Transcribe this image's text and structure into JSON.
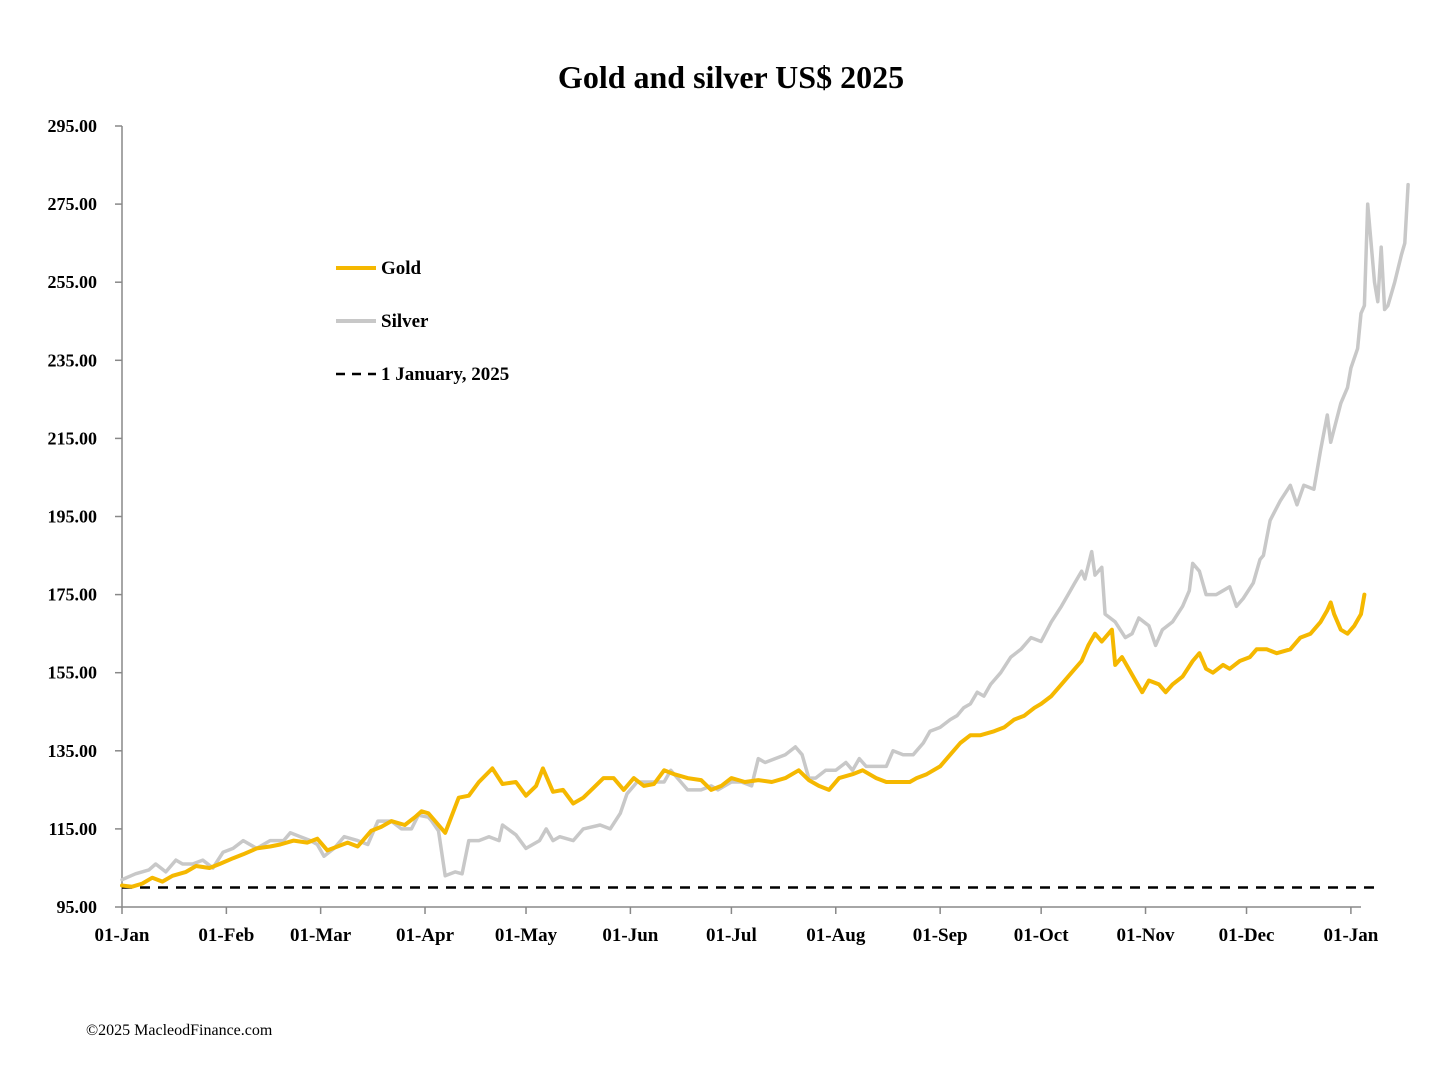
{
  "chart_data": {
    "type": "line",
    "title": "Gold and silver  US$ 2025",
    "xlabel": "",
    "ylabel": "",
    "ylim": [
      95,
      295
    ],
    "y_ticks": [
      "95.00",
      "115.00",
      "135.00",
      "155.00",
      "175.00",
      "195.00",
      "215.00",
      "235.00",
      "255.00",
      "275.00",
      "295.00"
    ],
    "x_ticks": [
      "01-Jan",
      "01-Feb",
      "01-Mar",
      "01-Apr",
      "01-May",
      "01-Jun",
      "01-Jul",
      "01-Aug",
      "01-Sep",
      "01-Oct",
      "01-Nov",
      "01-Dec",
      "01-Jan"
    ],
    "x_tick_days": [
      0,
      31,
      59,
      90,
      120,
      151,
      181,
      212,
      243,
      273,
      304,
      334,
      365
    ],
    "xlim_days": [
      0,
      368
    ],
    "legend_position": "upper-left",
    "grid": false,
    "series": [
      {
        "name": "Gold",
        "color": "#F5B800",
        "style": "solid",
        "points": [
          [
            0,
            100.5
          ],
          [
            3,
            100.2
          ],
          [
            6,
            101
          ],
          [
            9,
            102.5
          ],
          [
            12,
            101.5
          ],
          [
            15,
            103
          ],
          [
            19,
            104
          ],
          [
            22,
            105.5
          ],
          [
            26,
            105
          ],
          [
            29,
            106
          ],
          [
            33,
            107.5
          ],
          [
            36,
            108.5
          ],
          [
            40,
            110
          ],
          [
            44,
            110.5
          ],
          [
            47,
            111
          ],
          [
            51,
            112
          ],
          [
            55,
            111.5
          ],
          [
            58,
            112.5
          ],
          [
            61,
            109.5
          ],
          [
            64,
            110.5
          ],
          [
            67,
            111.5
          ],
          [
            70,
            110.5
          ],
          [
            74,
            114.5
          ],
          [
            77,
            115.5
          ],
          [
            80,
            117
          ],
          [
            84,
            116
          ],
          [
            87,
            118
          ],
          [
            89,
            119.5
          ],
          [
            91,
            119
          ],
          [
            94,
            116
          ],
          [
            96,
            114
          ],
          [
            100,
            123
          ],
          [
            103,
            123.5
          ],
          [
            106,
            127
          ],
          [
            110,
            130.5
          ],
          [
            113,
            126.5
          ],
          [
            117,
            127
          ],
          [
            120,
            123.5
          ],
          [
            123,
            126
          ],
          [
            125,
            130.5
          ],
          [
            128,
            124.5
          ],
          [
            131,
            125
          ],
          [
            134,
            121.5
          ],
          [
            137,
            123
          ],
          [
            140,
            125.5
          ],
          [
            143,
            128
          ],
          [
            146,
            128
          ],
          [
            149,
            125
          ],
          [
            152,
            128
          ],
          [
            155,
            126
          ],
          [
            158,
            126.5
          ],
          [
            161,
            130
          ],
          [
            164,
            129
          ],
          [
            168,
            128
          ],
          [
            172,
            127.5
          ],
          [
            175,
            125
          ],
          [
            178,
            126
          ],
          [
            181,
            128
          ],
          [
            185,
            127
          ],
          [
            189,
            127.5
          ],
          [
            193,
            127
          ],
          [
            197,
            128
          ],
          [
            201,
            130
          ],
          [
            204,
            127.5
          ],
          [
            207,
            126
          ],
          [
            210,
            125
          ],
          [
            213,
            128
          ],
          [
            217,
            129
          ],
          [
            220,
            130
          ],
          [
            224,
            128
          ],
          [
            227,
            127
          ],
          [
            231,
            127
          ],
          [
            234,
            127
          ],
          [
            236,
            128
          ],
          [
            239,
            129
          ],
          [
            243,
            131
          ],
          [
            246,
            134
          ],
          [
            249,
            137
          ],
          [
            252,
            139
          ],
          [
            255,
            139
          ],
          [
            259,
            140
          ],
          [
            262,
            141
          ],
          [
            265,
            143
          ],
          [
            268,
            144
          ],
          [
            271,
            146
          ],
          [
            273,
            147
          ],
          [
            276,
            149
          ],
          [
            279,
            152
          ],
          [
            282,
            155
          ],
          [
            285,
            158
          ],
          [
            287,
            162
          ],
          [
            289,
            165
          ],
          [
            291,
            163
          ],
          [
            294,
            166
          ],
          [
            295,
            157
          ],
          [
            297,
            159
          ],
          [
            299,
            156
          ],
          [
            301,
            153
          ],
          [
            303,
            150
          ],
          [
            305,
            153
          ],
          [
            308,
            152
          ],
          [
            310,
            150
          ],
          [
            312,
            152
          ],
          [
            315,
            154
          ],
          [
            318,
            158
          ],
          [
            320,
            160
          ],
          [
            322,
            156
          ],
          [
            324,
            155
          ],
          [
            327,
            157
          ],
          [
            329,
            156
          ],
          [
            332,
            158
          ],
          [
            335,
            159
          ],
          [
            337,
            161
          ],
          [
            340,
            161
          ],
          [
            343,
            160
          ],
          [
            347,
            161
          ],
          [
            350,
            164
          ],
          [
            353,
            165
          ],
          [
            356,
            168
          ],
          [
            358,
            171
          ],
          [
            359,
            173
          ],
          [
            360,
            170
          ],
          [
            362,
            166
          ],
          [
            364,
            165
          ],
          [
            366,
            167
          ],
          [
            368,
            170
          ],
          [
            369,
            175
          ]
        ]
      },
      {
        "name": "Silver",
        "color": "#C8C8C8",
        "style": "solid",
        "points": [
          [
            0,
            102
          ],
          [
            4,
            103.5
          ],
          [
            8,
            104.5
          ],
          [
            10,
            106
          ],
          [
            13,
            104
          ],
          [
            16,
            107
          ],
          [
            18,
            106
          ],
          [
            21,
            106
          ],
          [
            24,
            107
          ],
          [
            27,
            105
          ],
          [
            30,
            109
          ],
          [
            33,
            110
          ],
          [
            36,
            112
          ],
          [
            40,
            110
          ],
          [
            44,
            112
          ],
          [
            48,
            112
          ],
          [
            50,
            114
          ],
          [
            53,
            113
          ],
          [
            56,
            112
          ],
          [
            58,
            111
          ],
          [
            60,
            108
          ],
          [
            63,
            110
          ],
          [
            66,
            113
          ],
          [
            70,
            112
          ],
          [
            73,
            111
          ],
          [
            76,
            117
          ],
          [
            80,
            117
          ],
          [
            83,
            115
          ],
          [
            86,
            115
          ],
          [
            88,
            118.5
          ],
          [
            91,
            118
          ],
          [
            92,
            117
          ],
          [
            94,
            114.5
          ],
          [
            96,
            103
          ],
          [
            99,
            104
          ],
          [
            101,
            103.5
          ],
          [
            103,
            112
          ],
          [
            106,
            112
          ],
          [
            109,
            113
          ],
          [
            112,
            112
          ],
          [
            113,
            116
          ],
          [
            117,
            113.5
          ],
          [
            120,
            110
          ],
          [
            124,
            112
          ],
          [
            126,
            115
          ],
          [
            128,
            112
          ],
          [
            130,
            113
          ],
          [
            134,
            112
          ],
          [
            137,
            115
          ],
          [
            142,
            116
          ],
          [
            145,
            115
          ],
          [
            148,
            119
          ],
          [
            150,
            124
          ],
          [
            153,
            127
          ],
          [
            157,
            127
          ],
          [
            161,
            127
          ],
          [
            163,
            130
          ],
          [
            165,
            128
          ],
          [
            168,
            125
          ],
          [
            172,
            125
          ],
          [
            175,
            126
          ],
          [
            177,
            125
          ],
          [
            181,
            127
          ],
          [
            184,
            127
          ],
          [
            187,
            126
          ],
          [
            189,
            133
          ],
          [
            191,
            132
          ],
          [
            194,
            133
          ],
          [
            197,
            134
          ],
          [
            200,
            136
          ],
          [
            202,
            134
          ],
          [
            204,
            128
          ],
          [
            206,
            128
          ],
          [
            209,
            130
          ],
          [
            212,
            130
          ],
          [
            215,
            132
          ],
          [
            217,
            130
          ],
          [
            219,
            133
          ],
          [
            221,
            131
          ],
          [
            224,
            131
          ],
          [
            227,
            131
          ],
          [
            229,
            135
          ],
          [
            232,
            134
          ],
          [
            235,
            134
          ],
          [
            238,
            137
          ],
          [
            240,
            140
          ],
          [
            243,
            141
          ],
          [
            246,
            143
          ],
          [
            248,
            144
          ],
          [
            250,
            146
          ],
          [
            252,
            147
          ],
          [
            254,
            150
          ],
          [
            256,
            149
          ],
          [
            258,
            152
          ],
          [
            261,
            155
          ],
          [
            264,
            159
          ],
          [
            267,
            161
          ],
          [
            270,
            164
          ],
          [
            273,
            163
          ],
          [
            276,
            168
          ],
          [
            279,
            172
          ],
          [
            281,
            175
          ],
          [
            283,
            178
          ],
          [
            285,
            181
          ],
          [
            286,
            179
          ],
          [
            288,
            186
          ],
          [
            289,
            180
          ],
          [
            291,
            182
          ],
          [
            292,
            170
          ],
          [
            295,
            168
          ],
          [
            298,
            164
          ],
          [
            300,
            165
          ],
          [
            302,
            169
          ],
          [
            305,
            167
          ],
          [
            307,
            162
          ],
          [
            309,
            166
          ],
          [
            312,
            168
          ],
          [
            315,
            172
          ],
          [
            317,
            176
          ],
          [
            318,
            183
          ],
          [
            320,
            181
          ],
          [
            322,
            175
          ],
          [
            325,
            175
          ],
          [
            327,
            176
          ],
          [
            329,
            177
          ],
          [
            331,
            172
          ],
          [
            333,
            174
          ],
          [
            336,
            178
          ],
          [
            338,
            184
          ],
          [
            339,
            185
          ],
          [
            341,
            194
          ],
          [
            344,
            199
          ],
          [
            347,
            203
          ],
          [
            349,
            198
          ],
          [
            351,
            203
          ],
          [
            354,
            202
          ],
          [
            356,
            212
          ],
          [
            358,
            221
          ],
          [
            359,
            214
          ],
          [
            362,
            224
          ],
          [
            364,
            228
          ],
          [
            365,
            233
          ],
          [
            367,
            238
          ],
          [
            368,
            247
          ],
          [
            369,
            249
          ],
          [
            370,
            275
          ],
          [
            372,
            255
          ],
          [
            373,
            250
          ],
          [
            374,
            264
          ],
          [
            375,
            248
          ],
          [
            376,
            249
          ],
          [
            378,
            255
          ],
          [
            380,
            262
          ],
          [
            381,
            265
          ],
          [
            382,
            280
          ]
        ]
      },
      {
        "name": "1 January, 2025",
        "color": "#000000",
        "style": "dashed",
        "points": [
          [
            0,
            100
          ],
          [
            372,
            100
          ]
        ]
      }
    ],
    "legend": [
      {
        "label": "Gold",
        "color": "#F5B800",
        "style": "solid"
      },
      {
        "label": "Silver",
        "color": "#C8C8C8",
        "style": "solid"
      },
      {
        "label": "1 January, 2025",
        "color": "#000000",
        "style": "dashed"
      }
    ]
  },
  "footer": {
    "credit": "©2025 MacleodFinance.com"
  }
}
